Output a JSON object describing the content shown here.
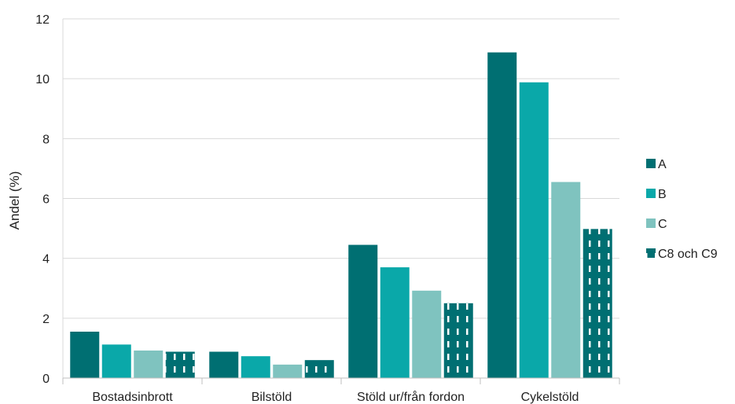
{
  "chart_data": {
    "type": "bar",
    "title": "",
    "xlabel": "",
    "ylabel": "Andel (%)",
    "ylim": [
      0,
      12
    ],
    "yticks": [
      0,
      2,
      4,
      6,
      8,
      10,
      12
    ],
    "grid": true,
    "legend_position": "right",
    "categories": [
      "Bostadsinbrott",
      "Bilstöld",
      "Stöld ur/från fordon",
      "Cykelstöld"
    ],
    "series": [
      {
        "name": "A",
        "color": "#006f72",
        "pattern": "solid",
        "values": [
          1.55,
          0.88,
          4.45,
          10.88
        ]
      },
      {
        "name": "B",
        "color": "#0aa8a9",
        "pattern": "solid",
        "values": [
          1.12,
          0.73,
          3.7,
          9.88
        ]
      },
      {
        "name": "C",
        "color": "#7fc3bf",
        "pattern": "solid",
        "values": [
          0.92,
          0.45,
          2.92,
          6.55
        ]
      },
      {
        "name": "C8 och C9",
        "color": "#006f72",
        "pattern": "dashed",
        "values": [
          0.88,
          0.6,
          2.5,
          4.98
        ]
      }
    ]
  }
}
